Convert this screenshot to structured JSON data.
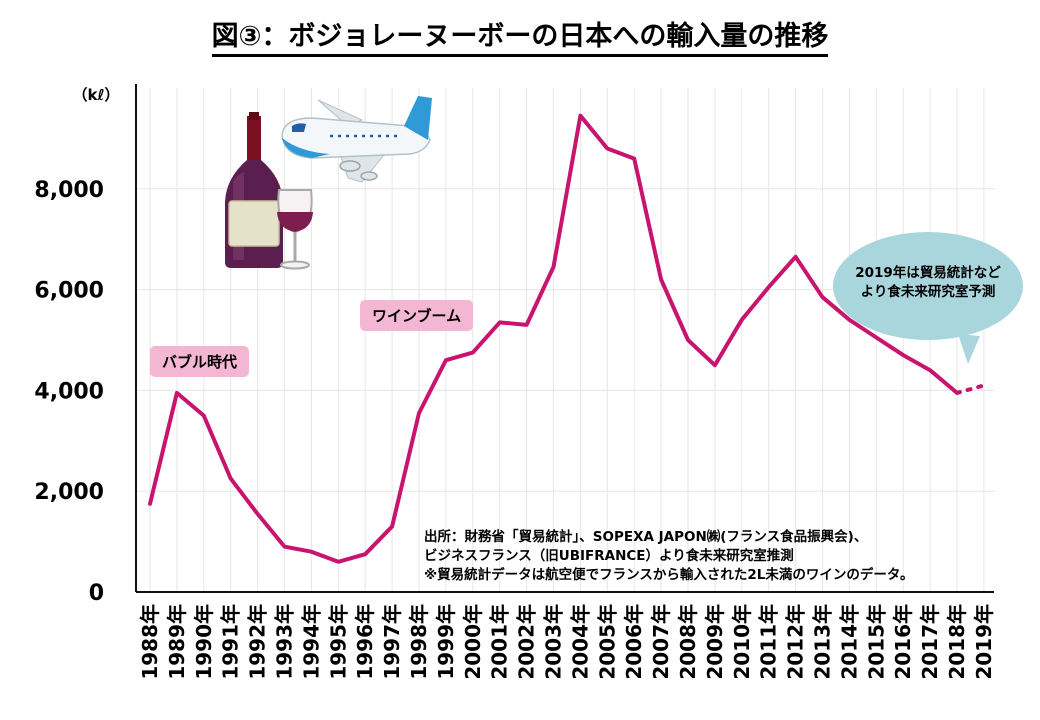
{
  "title": "図③：ボジョレーヌーボーの日本への輸入量の推移",
  "annotations": {
    "bubble_period": "バブル時代",
    "wine_boom": "ワインブーム",
    "forecast_note_line1": "2019年は貿易統計など",
    "forecast_note_line2": "より食未来研究室予測",
    "source_line1": "出所：財務省「貿易統計」、SOPEXA JAPON㈱(フランス食品振興会)、",
    "source_line2": "ビジネスフランス（旧UBIFRANCE）より食未来研究室推測",
    "source_line3": "※貿易統計データは航空便でフランスから輸入された2L未満のワインのデータ。"
  },
  "colors": {
    "line": "#c8146e",
    "tag_bg": "#f3b6d3",
    "bubble_bg": "#a9d6dc",
    "grid": "#e6e6e6"
  },
  "icons": [
    "wine-bottle-icon",
    "wine-glass-icon",
    "airplane-icon"
  ],
  "chart_data": {
    "type": "line",
    "title": "図③：ボジョレーヌーボーの日本への輸入量の推移",
    "ylabel": "（kℓ）",
    "xlabel": "",
    "ylim": [
      0,
      10000
    ],
    "yticks": [
      0,
      2000,
      4000,
      6000,
      8000
    ],
    "ytick_labels": [
      "0",
      "2,000",
      "4,000",
      "6,000",
      "8,000"
    ],
    "grid": "vertical and horizontal",
    "categories": [
      "1988年",
      "1989年",
      "1990年",
      "1991年",
      "1992年",
      "1993年",
      "1994年",
      "1995年",
      "1996年",
      "1997年",
      "1998年",
      "1999年",
      "2000年",
      "2001年",
      "2002年",
      "2003年",
      "2004年",
      "2005年",
      "2006年",
      "2007年",
      "2008年",
      "2009年",
      "2010年",
      "2011年",
      "2012年",
      "2013年",
      "2014年",
      "2015年",
      "2016年",
      "2017年",
      "2018年",
      "2019年"
    ],
    "series": [
      {
        "style": "solid",
        "values": [
          1750,
          3950,
          3500,
          2250,
          1550,
          900,
          800,
          600,
          750,
          1300,
          3550,
          4600,
          4750,
          5350,
          5300,
          6450,
          9450,
          8800,
          8600,
          6200,
          5000,
          4500,
          5400,
          6050,
          6650,
          5850,
          5400,
          5050,
          4700,
          4400,
          3950,
          null
        ]
      },
      {
        "style": "dotted",
        "values": [
          null,
          null,
          null,
          null,
          null,
          null,
          null,
          null,
          null,
          null,
          null,
          null,
          null,
          null,
          null,
          null,
          null,
          null,
          null,
          null,
          null,
          null,
          null,
          null,
          null,
          null,
          null,
          null,
          null,
          null,
          3950,
          4100
        ]
      }
    ]
  }
}
